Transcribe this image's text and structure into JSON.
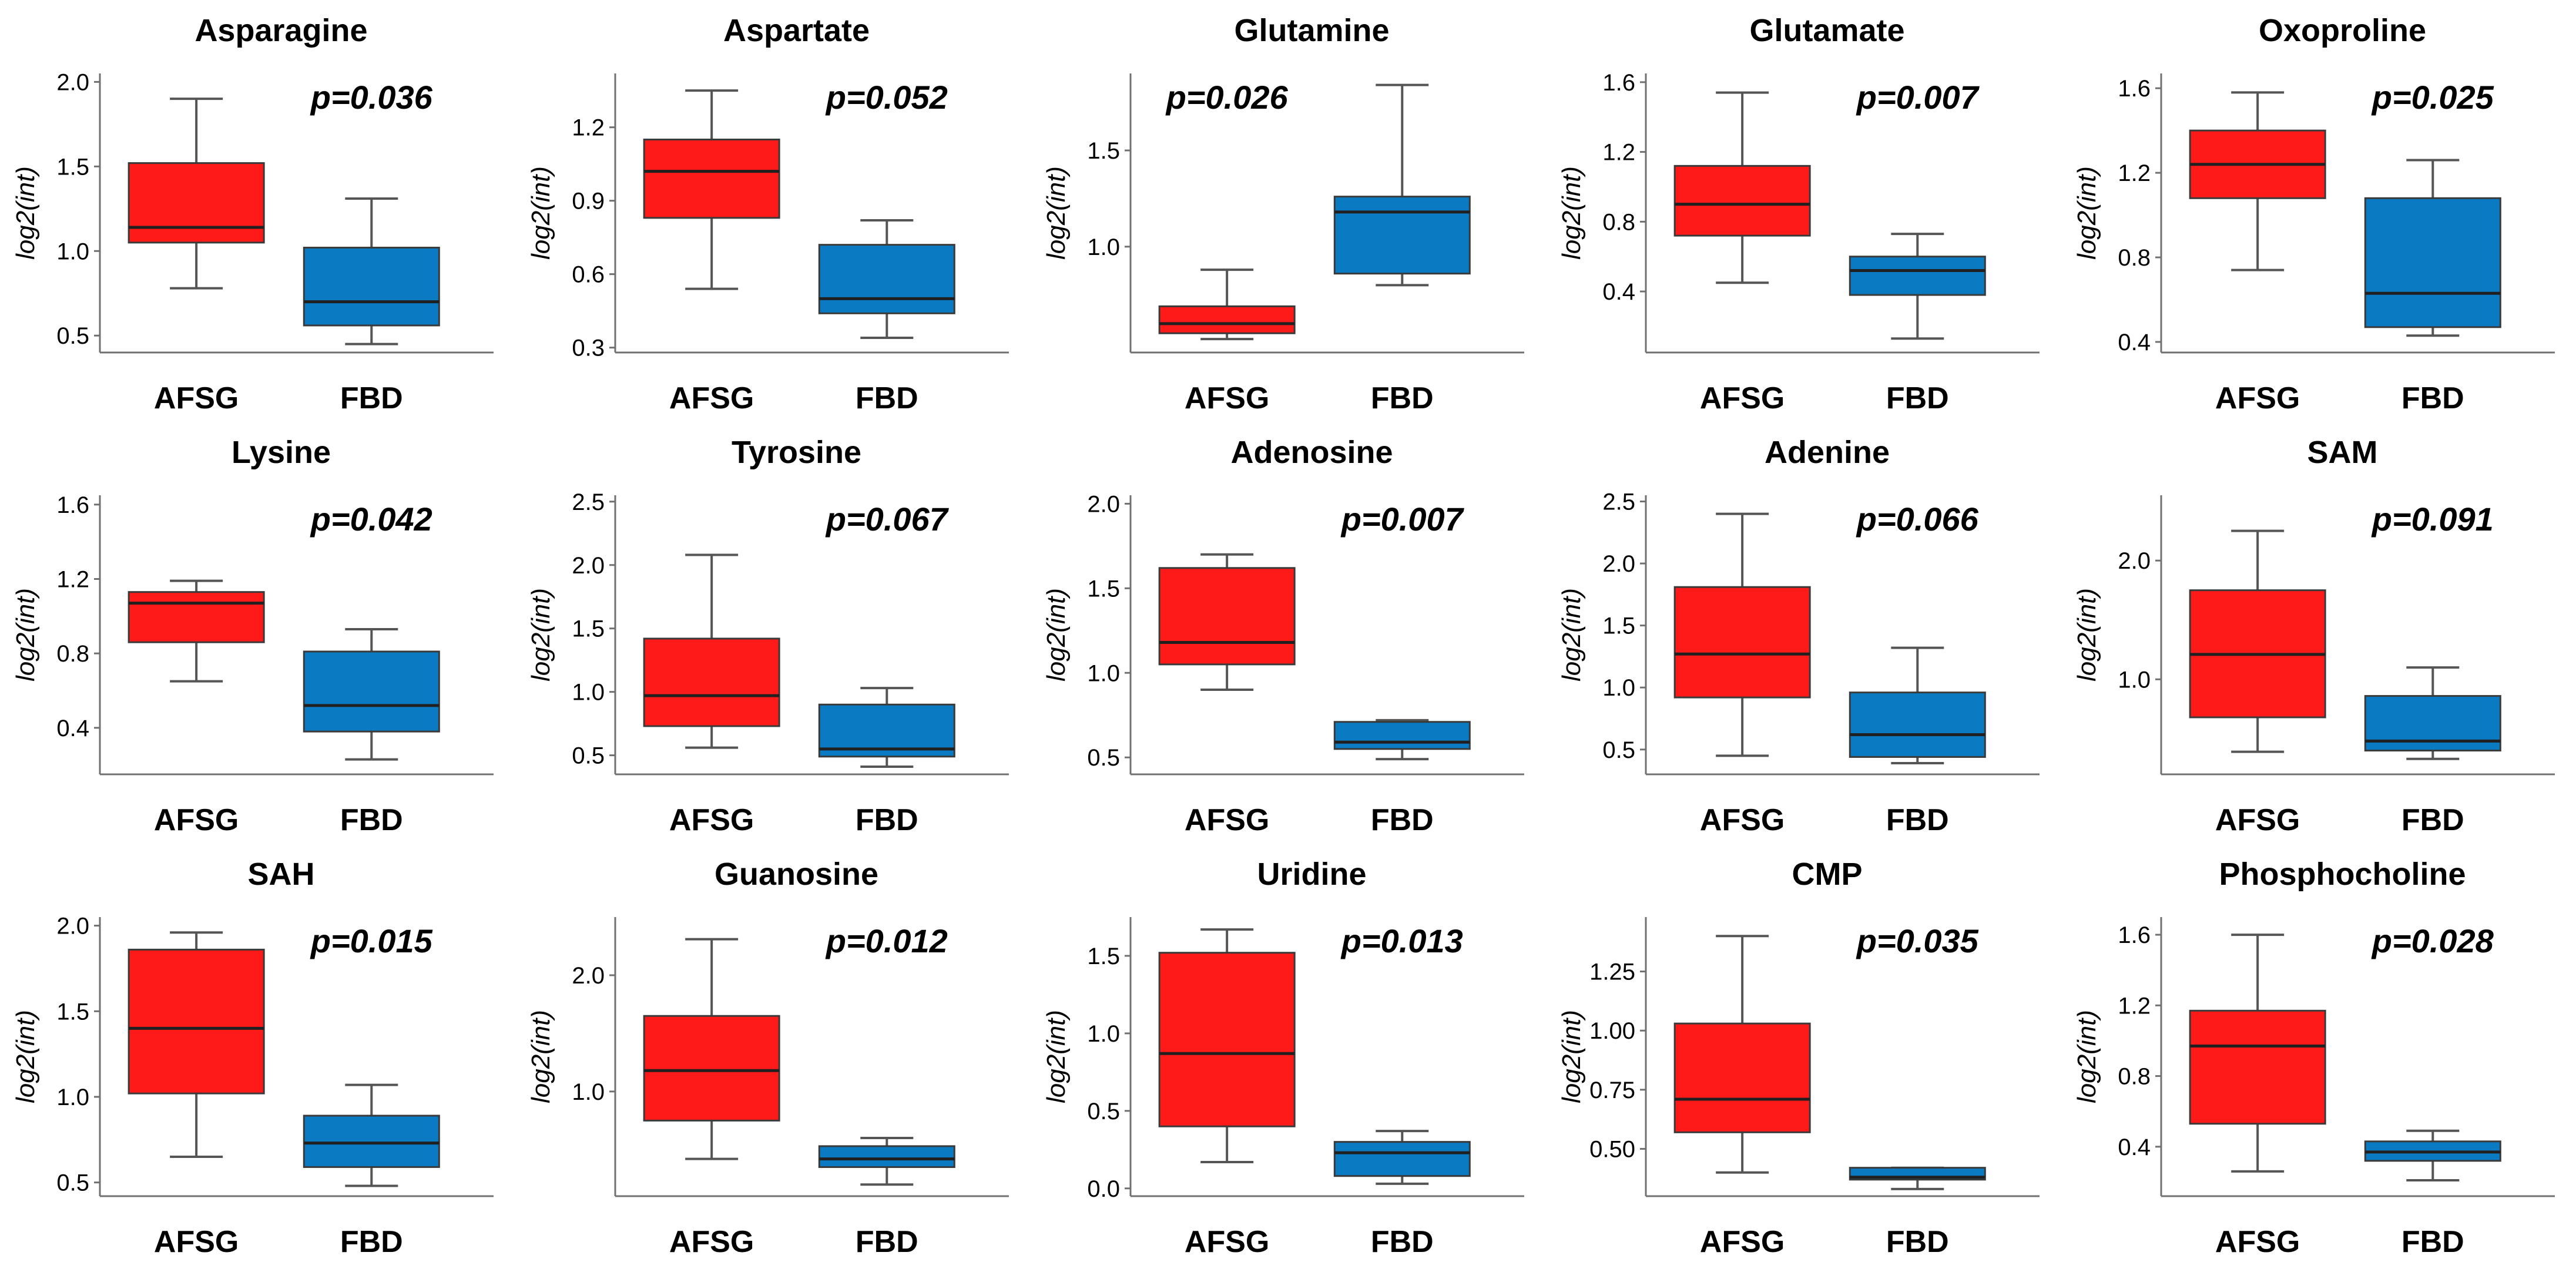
{
  "colors": {
    "afsg": "#ff1a1a",
    "fbd": "#0a7bc2",
    "axis": "#707070",
    "median": "#202020",
    "whisker": "#555555"
  },
  "chart_data": [
    {
      "type": "box",
      "title": "Asparagine",
      "pvalue": "p=0.036",
      "ylabel": "log2(int)",
      "ylim": [
        0.4,
        2.05
      ],
      "yticks": [
        "0.5",
        "1.0",
        "1.5",
        "2.0"
      ],
      "categories": [
        "AFSG",
        "FBD"
      ],
      "boxes": [
        {
          "group": "AFSG",
          "min": 0.78,
          "q1": 1.05,
          "median": 1.14,
          "q3": 1.52,
          "max": 1.9
        },
        {
          "group": "FBD",
          "min": 0.45,
          "q1": 0.56,
          "median": 0.7,
          "q3": 1.02,
          "max": 1.31
        }
      ]
    },
    {
      "type": "box",
      "title": "Aspartate",
      "pvalue": "p=0.052",
      "ylabel": "log2(int)",
      "ylim": [
        0.28,
        1.42
      ],
      "yticks": [
        "0.3",
        "0.6",
        "0.9",
        "1.2"
      ],
      "categories": [
        "AFSG",
        "FBD"
      ],
      "boxes": [
        {
          "group": "AFSG",
          "min": 0.54,
          "q1": 0.83,
          "median": 1.02,
          "q3": 1.15,
          "max": 1.35
        },
        {
          "group": "FBD",
          "min": 0.34,
          "q1": 0.44,
          "median": 0.5,
          "q3": 0.72,
          "max": 0.82
        }
      ]
    },
    {
      "type": "box",
      "title": "Glutamine",
      "pvalue": "p=0.026",
      "ylabel": "log2(int)",
      "ylim": [
        0.45,
        1.9
      ],
      "yticks": [
        "1.0",
        "1.5"
      ],
      "categories": [
        "AFSG",
        "FBD"
      ],
      "boxes": [
        {
          "group": "AFSG",
          "min": 0.52,
          "q1": 0.55,
          "median": 0.6,
          "q3": 0.69,
          "max": 0.88
        },
        {
          "group": "FBD",
          "min": 0.8,
          "q1": 0.86,
          "median": 1.18,
          "q3": 1.26,
          "max": 1.84
        }
      ]
    },
    {
      "type": "box",
      "title": "Glutamate",
      "pvalue": "p=0.007",
      "ylabel": "log2(int)",
      "ylim": [
        0.05,
        1.65
      ],
      "yticks": [
        "0.4",
        "0.8",
        "1.2",
        "1.6"
      ],
      "categories": [
        "AFSG",
        "FBD"
      ],
      "boxes": [
        {
          "group": "AFSG",
          "min": 0.45,
          "q1": 0.72,
          "median": 0.9,
          "q3": 1.12,
          "max": 1.54
        },
        {
          "group": "FBD",
          "min": 0.13,
          "q1": 0.38,
          "median": 0.52,
          "q3": 0.6,
          "max": 0.73
        }
      ]
    },
    {
      "type": "box",
      "title": "Oxoproline",
      "pvalue": "p=0.025",
      "ylabel": "log2(int)",
      "ylim": [
        0.35,
        1.67
      ],
      "yticks": [
        "0.4",
        "0.8",
        "1.2",
        "1.6"
      ],
      "categories": [
        "AFSG",
        "FBD"
      ],
      "boxes": [
        {
          "group": "AFSG",
          "min": 0.74,
          "q1": 1.08,
          "median": 1.24,
          "q3": 1.4,
          "max": 1.58
        },
        {
          "group": "FBD",
          "min": 0.43,
          "q1": 0.47,
          "median": 0.63,
          "q3": 1.08,
          "max": 1.26
        }
      ]
    },
    {
      "type": "box",
      "title": "Lysine",
      "pvalue": "p=0.042",
      "ylabel": "log2(int)",
      "ylim": [
        0.15,
        1.65
      ],
      "yticks": [
        "0.4",
        "0.8",
        "1.2",
        "1.6"
      ],
      "categories": [
        "AFSG",
        "FBD"
      ],
      "boxes": [
        {
          "group": "AFSG",
          "min": 0.65,
          "q1": 0.86,
          "median": 1.07,
          "q3": 1.13,
          "max": 1.19
        },
        {
          "group": "FBD",
          "min": 0.23,
          "q1": 0.38,
          "median": 0.52,
          "q3": 0.81,
          "max": 0.93
        }
      ]
    },
    {
      "type": "box",
      "title": "Tyrosine",
      "pvalue": "p=0.067",
      "ylabel": "log2(int)",
      "ylim": [
        0.35,
        2.55
      ],
      "yticks": [
        "0.5",
        "1.0",
        "1.5",
        "2.0",
        "2.5"
      ],
      "categories": [
        "AFSG",
        "FBD"
      ],
      "boxes": [
        {
          "group": "AFSG",
          "min": 0.56,
          "q1": 0.73,
          "median": 0.97,
          "q3": 1.42,
          "max": 2.08
        },
        {
          "group": "FBD",
          "min": 0.41,
          "q1": 0.49,
          "median": 0.55,
          "q3": 0.9,
          "max": 1.03
        }
      ]
    },
    {
      "type": "box",
      "title": "Adenosine",
      "pvalue": "p=0.007",
      "ylabel": "log2(int)",
      "ylim": [
        0.4,
        2.05
      ],
      "yticks": [
        "0.5",
        "1.0",
        "1.5",
        "2.0"
      ],
      "categories": [
        "AFSG",
        "FBD"
      ],
      "boxes": [
        {
          "group": "AFSG",
          "min": 0.9,
          "q1": 1.05,
          "median": 1.18,
          "q3": 1.62,
          "max": 1.7
        },
        {
          "group": "FBD",
          "min": 0.49,
          "q1": 0.55,
          "median": 0.59,
          "q3": 0.71,
          "max": 0.72
        }
      ]
    },
    {
      "type": "box",
      "title": "Adenine",
      "pvalue": "p=0.066",
      "ylabel": "log2(int)",
      "ylim": [
        0.3,
        2.55
      ],
      "yticks": [
        "0.5",
        "1.0",
        "1.5",
        "2.0",
        "2.5"
      ],
      "categories": [
        "AFSG",
        "FBD"
      ],
      "boxes": [
        {
          "group": "AFSG",
          "min": 0.45,
          "q1": 0.92,
          "median": 1.27,
          "q3": 1.81,
          "max": 2.4
        },
        {
          "group": "FBD",
          "min": 0.39,
          "q1": 0.44,
          "median": 0.62,
          "q3": 0.96,
          "max": 1.32
        }
      ]
    },
    {
      "type": "box",
      "title": "SAM",
      "pvalue": "p=0.091",
      "ylabel": "log2(int)",
      "ylim": [
        0.2,
        2.55
      ],
      "yticks": [
        "1.0",
        "2.0"
      ],
      "categories": [
        "AFSG",
        "FBD"
      ],
      "boxes": [
        {
          "group": "AFSG",
          "min": 0.39,
          "q1": 0.68,
          "median": 1.21,
          "q3": 1.75,
          "max": 2.25
        },
        {
          "group": "FBD",
          "min": 0.33,
          "q1": 0.4,
          "median": 0.48,
          "q3": 0.86,
          "max": 1.1
        }
      ]
    },
    {
      "type": "box",
      "title": "SAH",
      "pvalue": "p=0.015",
      "ylabel": "log2(int)",
      "ylim": [
        0.42,
        2.05
      ],
      "yticks": [
        "0.5",
        "1.0",
        "1.5",
        "2.0"
      ],
      "categories": [
        "AFSG",
        "FBD"
      ],
      "boxes": [
        {
          "group": "AFSG",
          "min": 0.65,
          "q1": 1.02,
          "median": 1.4,
          "q3": 1.86,
          "max": 1.96
        },
        {
          "group": "FBD",
          "min": 0.48,
          "q1": 0.59,
          "median": 0.73,
          "q3": 0.89,
          "max": 1.07
        }
      ]
    },
    {
      "type": "box",
      "title": "Guanosine",
      "pvalue": "p=0.012",
      "ylabel": "log2(int)",
      "ylim": [
        0.1,
        2.5
      ],
      "yticks": [
        "1.0",
        "2.0"
      ],
      "categories": [
        "AFSG",
        "FBD"
      ],
      "boxes": [
        {
          "group": "AFSG",
          "min": 0.42,
          "q1": 0.75,
          "median": 1.18,
          "q3": 1.65,
          "max": 2.31
        },
        {
          "group": "FBD",
          "min": 0.2,
          "q1": 0.35,
          "median": 0.42,
          "q3": 0.53,
          "max": 0.6
        }
      ]
    },
    {
      "type": "box",
      "title": "Uridine",
      "pvalue": "p=0.013",
      "ylabel": "log2(int)",
      "ylim": [
        -0.05,
        1.75
      ],
      "yticks": [
        "0.0",
        "0.5",
        "1.0",
        "1.5"
      ],
      "categories": [
        "AFSG",
        "FBD"
      ],
      "boxes": [
        {
          "group": "AFSG",
          "min": 0.17,
          "q1": 0.4,
          "median": 0.87,
          "q3": 1.52,
          "max": 1.67
        },
        {
          "group": "FBD",
          "min": 0.03,
          "q1": 0.08,
          "median": 0.23,
          "q3": 0.3,
          "max": 0.37
        }
      ]
    },
    {
      "type": "box",
      "title": "CMP",
      "pvalue": "p=0.035",
      "ylabel": "log2(int)",
      "ylim": [
        0.3,
        1.48
      ],
      "yticks": [
        "0.50",
        "0.75",
        "1.00",
        "1.25"
      ],
      "categories": [
        "AFSG",
        "FBD"
      ],
      "boxes": [
        {
          "group": "AFSG",
          "min": 0.4,
          "q1": 0.57,
          "median": 0.71,
          "q3": 1.03,
          "max": 1.4
        },
        {
          "group": "FBD",
          "min": 0.33,
          "q1": 0.37,
          "median": 0.38,
          "q3": 0.42,
          "max": 0.42
        }
      ]
    },
    {
      "type": "box",
      "title": "Phosphocholine",
      "pvalue": "p=0.028",
      "ylabel": "log2(int)",
      "ylim": [
        0.12,
        1.7
      ],
      "yticks": [
        "0.4",
        "0.8",
        "1.2",
        "1.6"
      ],
      "categories": [
        "AFSG",
        "FBD"
      ],
      "boxes": [
        {
          "group": "AFSG",
          "min": 0.26,
          "q1": 0.53,
          "median": 0.97,
          "q3": 1.17,
          "max": 1.6
        },
        {
          "group": "FBD",
          "min": 0.21,
          "q1": 0.32,
          "median": 0.37,
          "q3": 0.43,
          "max": 0.49
        }
      ]
    }
  ]
}
